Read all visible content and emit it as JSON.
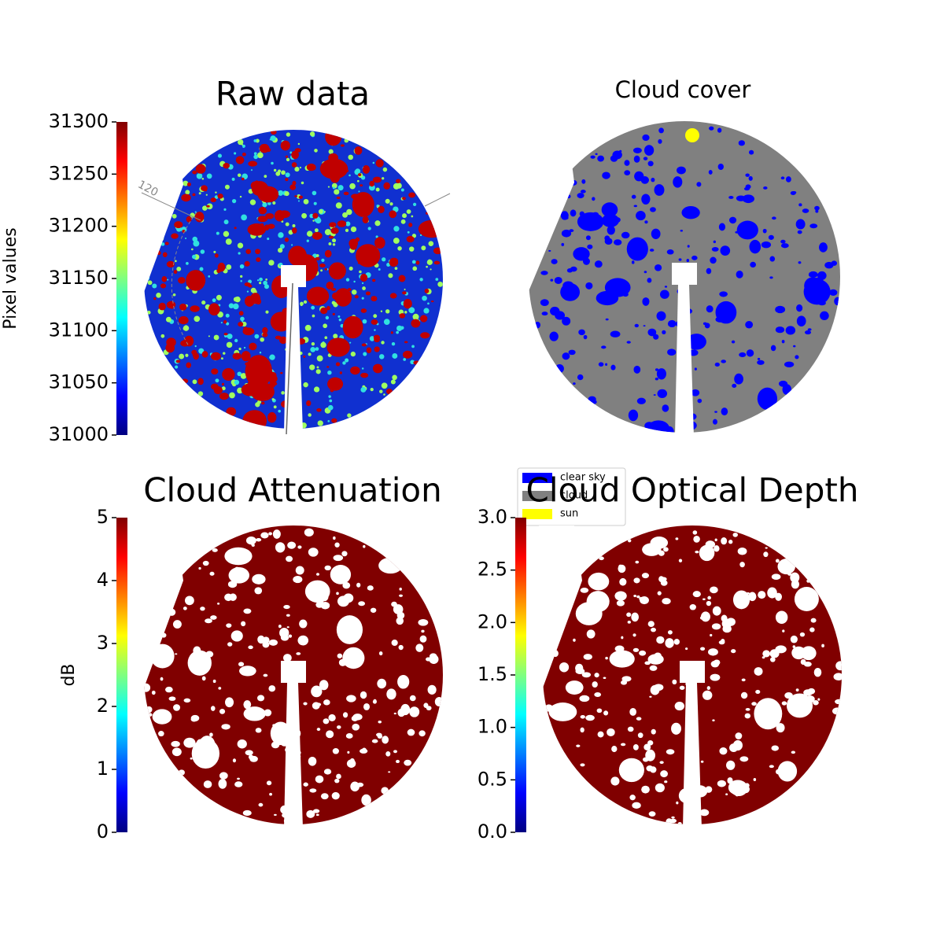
{
  "chart_data": [
    {
      "type": "image",
      "title": "Raw data",
      "colormap": "jet",
      "ylim": [
        31000,
        31300
      ],
      "yticks": [
        31000,
        31050,
        31100,
        31150,
        31200,
        31250,
        31300
      ],
      "ylabel": "Pixel values",
      "annotations": [
        "120"
      ]
    },
    {
      "type": "image",
      "title": "Cloud cover",
      "series": [
        {
          "name": "clear sky",
          "color": "#0000ff"
        },
        {
          "name": "cloud",
          "color": "#808080"
        },
        {
          "name": "sun",
          "color": "#ffff00"
        }
      ]
    },
    {
      "type": "image",
      "title": "Cloud Attenuation",
      "colormap": "jet",
      "ylim": [
        0,
        5
      ],
      "yticks": [
        0,
        1,
        2,
        3,
        4,
        5
      ],
      "ylabel": "dB"
    },
    {
      "type": "image",
      "title": "Cloud Optical Depth",
      "colormap": "jet",
      "ylim": [
        0,
        3
      ],
      "yticks": [
        {
          "value": 0,
          "label": "0.0"
        },
        {
          "value": 0.5,
          "label": "0.5"
        },
        {
          "value": 1,
          "label": "1.0"
        },
        {
          "value": 1.5,
          "label": "1.5"
        },
        {
          "value": 2,
          "label": "2.0"
        },
        {
          "value": 2.5,
          "label": "2.5"
        },
        {
          "value": 3,
          "label": "3.0"
        }
      ]
    }
  ]
}
